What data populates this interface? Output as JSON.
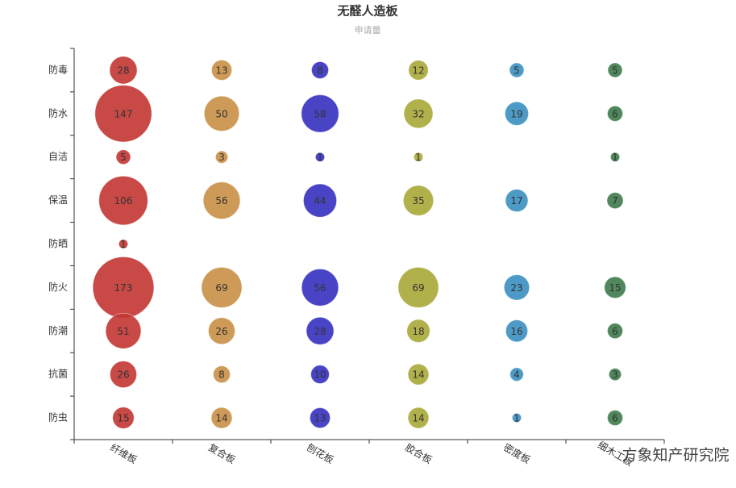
{
  "chart_data": {
    "type": "bubble",
    "title": "无醛人造板",
    "subtitle": "申请量",
    "categories": [
      "防毒",
      "防水",
      "自洁",
      "保温",
      "防晒",
      "防火",
      "防潮",
      "抗菌",
      "防虫"
    ],
    "series": [
      {
        "name": "纤维板",
        "color": "#c23531",
        "values": [
          28,
          147,
          5,
          106,
          1,
          173,
          51,
          26,
          15
        ]
      },
      {
        "name": "复合板",
        "color": "#c98f45",
        "values": [
          13,
          50,
          3,
          56,
          null,
          69,
          26,
          8,
          14
        ]
      },
      {
        "name": "刨花板",
        "color": "#3530c0",
        "values": [
          8,
          58,
          1,
          44,
          null,
          56,
          28,
          10,
          13
        ]
      },
      {
        "name": "胶合板",
        "color": "#a9a838",
        "values": [
          12,
          32,
          1,
          35,
          null,
          69,
          18,
          14,
          14
        ]
      },
      {
        "name": "密度板",
        "color": "#3b8fc0",
        "values": [
          5,
          19,
          null,
          17,
          null,
          23,
          16,
          4,
          1
        ]
      },
      {
        "name": "细木工板",
        "color": "#3d7a4a",
        "values": [
          5,
          6,
          1,
          7,
          null,
          15,
          6,
          3,
          6
        ]
      }
    ]
  },
  "watermark": "方象知产研究院"
}
